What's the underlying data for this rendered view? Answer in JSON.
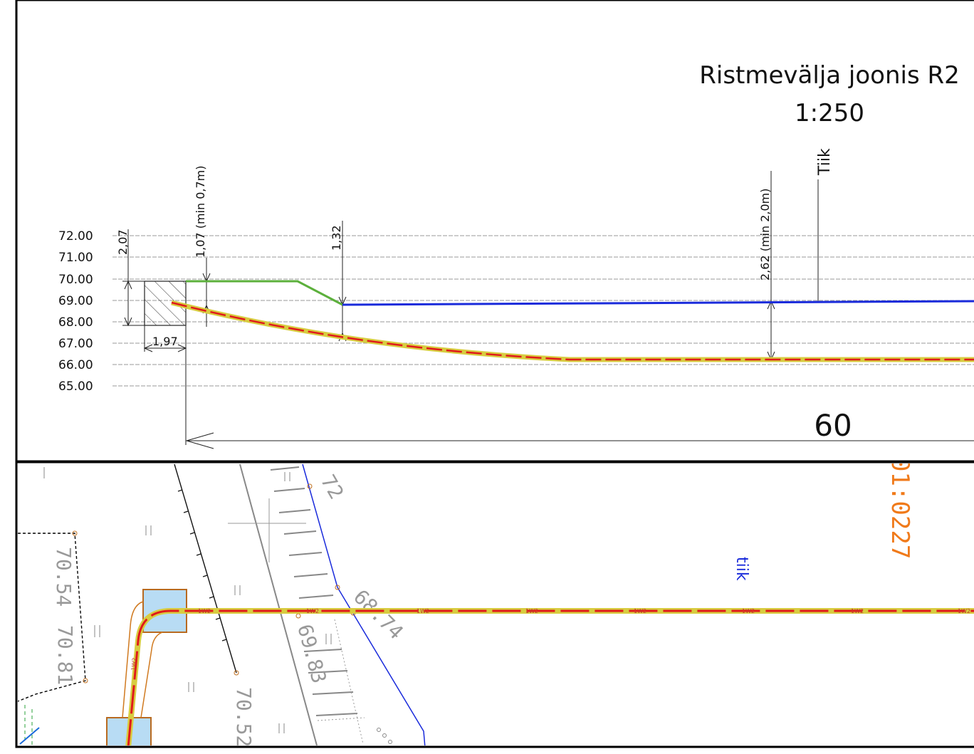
{
  "profile": {
    "title": "Ristmevälja joonis R2",
    "scale": "1:250",
    "elevation_labels": [
      "72.00",
      "71.00",
      "70.00",
      "69.00",
      "68.00",
      "67.00",
      "66.00",
      "65.00"
    ],
    "dim_depth_left": "2,07",
    "dim_width": "1,97",
    "dim_cover_start": "1,07 (min 0,7m)",
    "dim_cover_mid": "1,32",
    "dim_cover_pond": "2,62 (min 2,0m)",
    "pond_label": "Tiik",
    "length_label": "60",
    "colors": {
      "ground_line": "#5cb03c",
      "water_line": "#1a2bdb",
      "pipe_red": "#e01a1a",
      "pipe_yellow": "#d8cc40"
    }
  },
  "plan": {
    "parcel_code": "01:0227",
    "pond_label": "tiik",
    "pipe_label": "1W2",
    "elevations": [
      "70.54",
      "70.81",
      "69.83",
      "68.74",
      "70.52",
      "72"
    ]
  }
}
